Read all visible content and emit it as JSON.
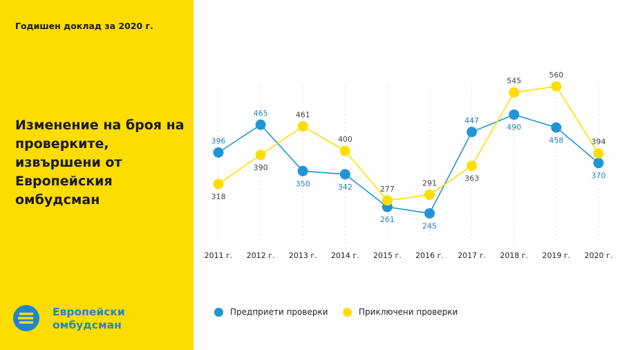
{
  "header": {
    "report_label": "Годишен доклад за 2020 г."
  },
  "title": "Изменение на броя на проверките, извършени от Европейския омбудсман",
  "logo": {
    "text": "Европейски омбудсман",
    "icon": "euro-ombudsman-logo-icon"
  },
  "colors": {
    "accent_yellow": "#FDDC00",
    "blue": "#1F95D6",
    "yellow": "#FFDD00",
    "grid": "#e6e6e6"
  },
  "chart_data": {
    "type": "line",
    "categories": [
      "2011 г.",
      "2012 г.",
      "2013 г.",
      "2014 г.",
      "2015 г.",
      "2016 г.",
      "2017 г.",
      "2018 г.",
      "2019 г.",
      "2020 г."
    ],
    "series": [
      {
        "name": "Предприети проверки",
        "color": "#1F95D6",
        "values": [
          396,
          465,
          350,
          342,
          261,
          245,
          447,
          490,
          458,
          370
        ]
      },
      {
        "name": "Приключени проверки",
        "color": "#FFDD00",
        "values": [
          318,
          390,
          461,
          400,
          277,
          291,
          363,
          545,
          560,
          394
        ]
      }
    ],
    "ylim": [
      160,
      620
    ],
    "grid": "vertical dashed",
    "legend": "bottom"
  }
}
